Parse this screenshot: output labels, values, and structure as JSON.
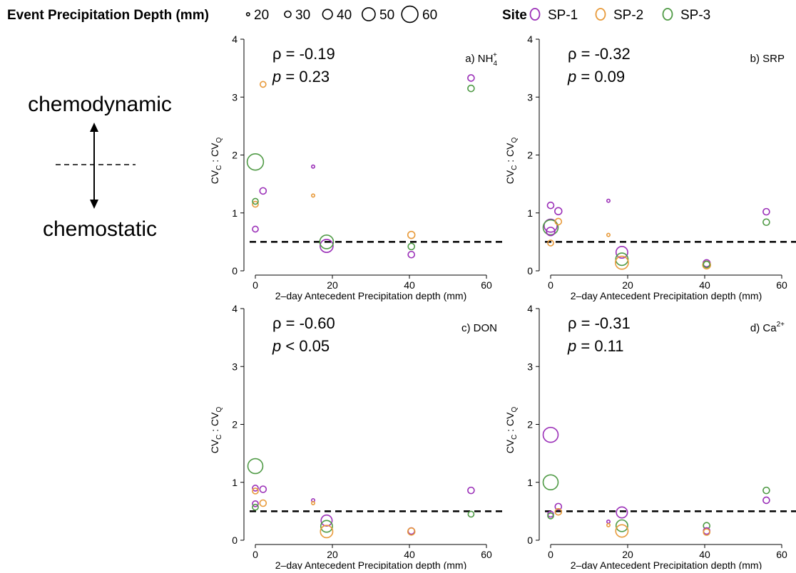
{
  "legend": {
    "size_title": "Event Precipitation Depth (mm)",
    "size_items": [
      {
        "label": "20",
        "value": 20
      },
      {
        "label": "30",
        "value": 30
      },
      {
        "label": "40",
        "value": 40
      },
      {
        "label": "50",
        "value": 50
      },
      {
        "label": "60",
        "value": 60
      }
    ],
    "site_title": "Site",
    "site_items": [
      {
        "label": "SP-1",
        "color": "#9b30b8"
      },
      {
        "label": "SP-2",
        "color": "#e89a3a"
      },
      {
        "label": "SP-3",
        "color": "#4f9a45"
      }
    ]
  },
  "side_annotation": {
    "top": "chemodynamic",
    "bottom": "chemostatic"
  },
  "chart_data": [
    {
      "type": "scatter",
      "panel_label": "a) NH",
      "panel_sub": "4",
      "panel_sup": "+",
      "rho": "ρ = -0.19",
      "p_label": "p",
      "p_value": " = 0.23",
      "xlabel": "2–day Antecedent Precipitation depth (mm)",
      "ylabel": "CVC : CVQ",
      "xlim": [
        -3,
        63
      ],
      "ylim": [
        0,
        4
      ],
      "xticks": [
        0,
        20,
        40,
        60
      ],
      "yticks": [
        0,
        1,
        2,
        3,
        4
      ],
      "reference_line": 0.5,
      "points": [
        {
          "x": 0,
          "y": 0.72,
          "site": "SP-1",
          "size": 28
        },
        {
          "x": 0,
          "y": 1.15,
          "site": "SP-2",
          "size": 28
        },
        {
          "x": 0,
          "y": 1.2,
          "site": "SP-3",
          "size": 28
        },
        {
          "x": 0,
          "y": 1.88,
          "site": "SP-3",
          "size": 60
        },
        {
          "x": 2,
          "y": 1.38,
          "site": "SP-1",
          "size": 30
        },
        {
          "x": 2,
          "y": 3.22,
          "site": "SP-2",
          "size": 28
        },
        {
          "x": 15,
          "y": 1.8,
          "site": "SP-1",
          "size": 20
        },
        {
          "x": 15,
          "y": 1.3,
          "site": "SP-2",
          "size": 20
        },
        {
          "x": 18.5,
          "y": 0.43,
          "site": "SP-1",
          "size": 50
        },
        {
          "x": 18.5,
          "y": 0.5,
          "site": "SP-3",
          "size": 52
        },
        {
          "x": 40.5,
          "y": 0.28,
          "site": "SP-1",
          "size": 30
        },
        {
          "x": 40.5,
          "y": 0.62,
          "site": "SP-2",
          "size": 32
        },
        {
          "x": 40.5,
          "y": 0.42,
          "site": "SP-3",
          "size": 30
        },
        {
          "x": 56,
          "y": 3.33,
          "site": "SP-1",
          "size": 30
        },
        {
          "x": 56,
          "y": 3.15,
          "site": "SP-3",
          "size": 30
        }
      ]
    },
    {
      "type": "scatter",
      "panel_label": "b) SRP",
      "panel_sub": "",
      "panel_sup": "",
      "rho": "ρ = -0.32",
      "p_label": "p",
      "p_value": " = 0.09",
      "xlabel": "2–day Antecedent Precipitation depth (mm)",
      "ylabel": "CVC : CVQ",
      "xlim": [
        -3,
        63
      ],
      "ylim": [
        0,
        4
      ],
      "xticks": [
        0,
        20,
        40,
        60
      ],
      "yticks": [
        0,
        1,
        2,
        3,
        4
      ],
      "reference_line": 0.5,
      "points": [
        {
          "x": 0,
          "y": 1.13,
          "site": "SP-1",
          "size": 30
        },
        {
          "x": 0,
          "y": 0.78,
          "site": "SP-1",
          "size": 50
        },
        {
          "x": 0,
          "y": 0.75,
          "site": "SP-3",
          "size": 56
        },
        {
          "x": 0,
          "y": 0.68,
          "site": "SP-1",
          "size": 36
        },
        {
          "x": 0,
          "y": 0.48,
          "site": "SP-2",
          "size": 28
        },
        {
          "x": 2,
          "y": 1.03,
          "site": "SP-1",
          "size": 32
        },
        {
          "x": 2,
          "y": 0.85,
          "site": "SP-2",
          "size": 30
        },
        {
          "x": 15,
          "y": 1.21,
          "site": "SP-1",
          "size": 20
        },
        {
          "x": 15,
          "y": 0.62,
          "site": "SP-2",
          "size": 20
        },
        {
          "x": 18.5,
          "y": 0.32,
          "site": "SP-1",
          "size": 46
        },
        {
          "x": 18.5,
          "y": 0.2,
          "site": "SP-3",
          "size": 48
        },
        {
          "x": 18.5,
          "y": 0.14,
          "site": "SP-2",
          "size": 50
        },
        {
          "x": 40.5,
          "y": 0.13,
          "site": "SP-1",
          "size": 32
        },
        {
          "x": 40.5,
          "y": 0.1,
          "site": "SP-2",
          "size": 34
        },
        {
          "x": 40.5,
          "y": 0.11,
          "site": "SP-3",
          "size": 30
        },
        {
          "x": 56,
          "y": 1.02,
          "site": "SP-1",
          "size": 30
        },
        {
          "x": 56,
          "y": 0.84,
          "site": "SP-3",
          "size": 30
        }
      ]
    },
    {
      "type": "scatter",
      "panel_label": "c) DON",
      "panel_sub": "",
      "panel_sup": "",
      "rho": "ρ = -0.60",
      "p_label": "p",
      "p_value": " < 0.05",
      "xlabel": "2–day Antecedent Precipitation depth (mm)",
      "ylabel": "CVC : CVQ",
      "xlim": [
        -3,
        63
      ],
      "ylim": [
        0,
        4
      ],
      "xticks": [
        0,
        20,
        40,
        60
      ],
      "yticks": [
        0,
        1,
        2,
        3,
        4
      ],
      "reference_line": 0.5,
      "points": [
        {
          "x": 0,
          "y": 1.28,
          "site": "SP-3",
          "size": 56
        },
        {
          "x": 0,
          "y": 0.9,
          "site": "SP-1",
          "size": 28
        },
        {
          "x": 0,
          "y": 0.85,
          "site": "SP-2",
          "size": 28
        },
        {
          "x": 0,
          "y": 0.63,
          "site": "SP-1",
          "size": 28
        },
        {
          "x": 0,
          "y": 0.57,
          "site": "SP-3",
          "size": 28
        },
        {
          "x": 2,
          "y": 0.88,
          "site": "SP-1",
          "size": 30
        },
        {
          "x": 2,
          "y": 0.64,
          "site": "SP-2",
          "size": 30
        },
        {
          "x": 15,
          "y": 0.69,
          "site": "SP-1",
          "size": 20
        },
        {
          "x": 15,
          "y": 0.64,
          "site": "SP-2",
          "size": 20
        },
        {
          "x": 18.5,
          "y": 0.34,
          "site": "SP-1",
          "size": 44
        },
        {
          "x": 18.5,
          "y": 0.24,
          "site": "SP-3",
          "size": 46
        },
        {
          "x": 18.5,
          "y": 0.15,
          "site": "SP-2",
          "size": 48
        },
        {
          "x": 40.5,
          "y": 0.16,
          "site": "SP-1",
          "size": 30
        },
        {
          "x": 40.5,
          "y": 0.15,
          "site": "SP-2",
          "size": 32
        },
        {
          "x": 56,
          "y": 0.86,
          "site": "SP-1",
          "size": 30
        },
        {
          "x": 56,
          "y": 0.45,
          "site": "SP-3",
          "size": 28
        }
      ]
    },
    {
      "type": "scatter",
      "panel_label": "d) Ca",
      "panel_sub": "",
      "panel_sup": "2+",
      "rho": "ρ = -0.31",
      "p_label": "p",
      "p_value": " = 0.11",
      "xlabel": "2–day Antecedent Precipitation depth (mm)",
      "ylabel": "CVC : CVQ",
      "xlim": [
        -3,
        63
      ],
      "ylim": [
        0,
        4
      ],
      "xticks": [
        0,
        20,
        40,
        60
      ],
      "yticks": [
        0,
        1,
        2,
        3,
        4
      ],
      "reference_line": 0.5,
      "points": [
        {
          "x": 0,
          "y": 1.82,
          "site": "SP-1",
          "size": 56
        },
        {
          "x": 0,
          "y": 1.0,
          "site": "SP-3",
          "size": 56
        },
        {
          "x": 0,
          "y": 0.45,
          "site": "SP-1",
          "size": 28
        },
        {
          "x": 0,
          "y": 0.42,
          "site": "SP-3",
          "size": 28
        },
        {
          "x": 2,
          "y": 0.58,
          "site": "SP-1",
          "size": 30
        },
        {
          "x": 2,
          "y": 0.49,
          "site": "SP-2",
          "size": 30
        },
        {
          "x": 15,
          "y": 0.32,
          "site": "SP-1",
          "size": 20
        },
        {
          "x": 15,
          "y": 0.26,
          "site": "SP-2",
          "size": 20
        },
        {
          "x": 18.5,
          "y": 0.48,
          "site": "SP-1",
          "size": 44
        },
        {
          "x": 18.5,
          "y": 0.25,
          "site": "SP-3",
          "size": 46
        },
        {
          "x": 18.5,
          "y": 0.16,
          "site": "SP-2",
          "size": 48
        },
        {
          "x": 40.5,
          "y": 0.25,
          "site": "SP-3",
          "size": 30
        },
        {
          "x": 40.5,
          "y": 0.16,
          "site": "SP-1",
          "size": 30
        },
        {
          "x": 40.5,
          "y": 0.14,
          "site": "SP-2",
          "size": 30
        },
        {
          "x": 56,
          "y": 0.86,
          "site": "SP-3",
          "size": 30
        },
        {
          "x": 56,
          "y": 0.69,
          "site": "SP-1",
          "size": 30
        }
      ]
    }
  ]
}
